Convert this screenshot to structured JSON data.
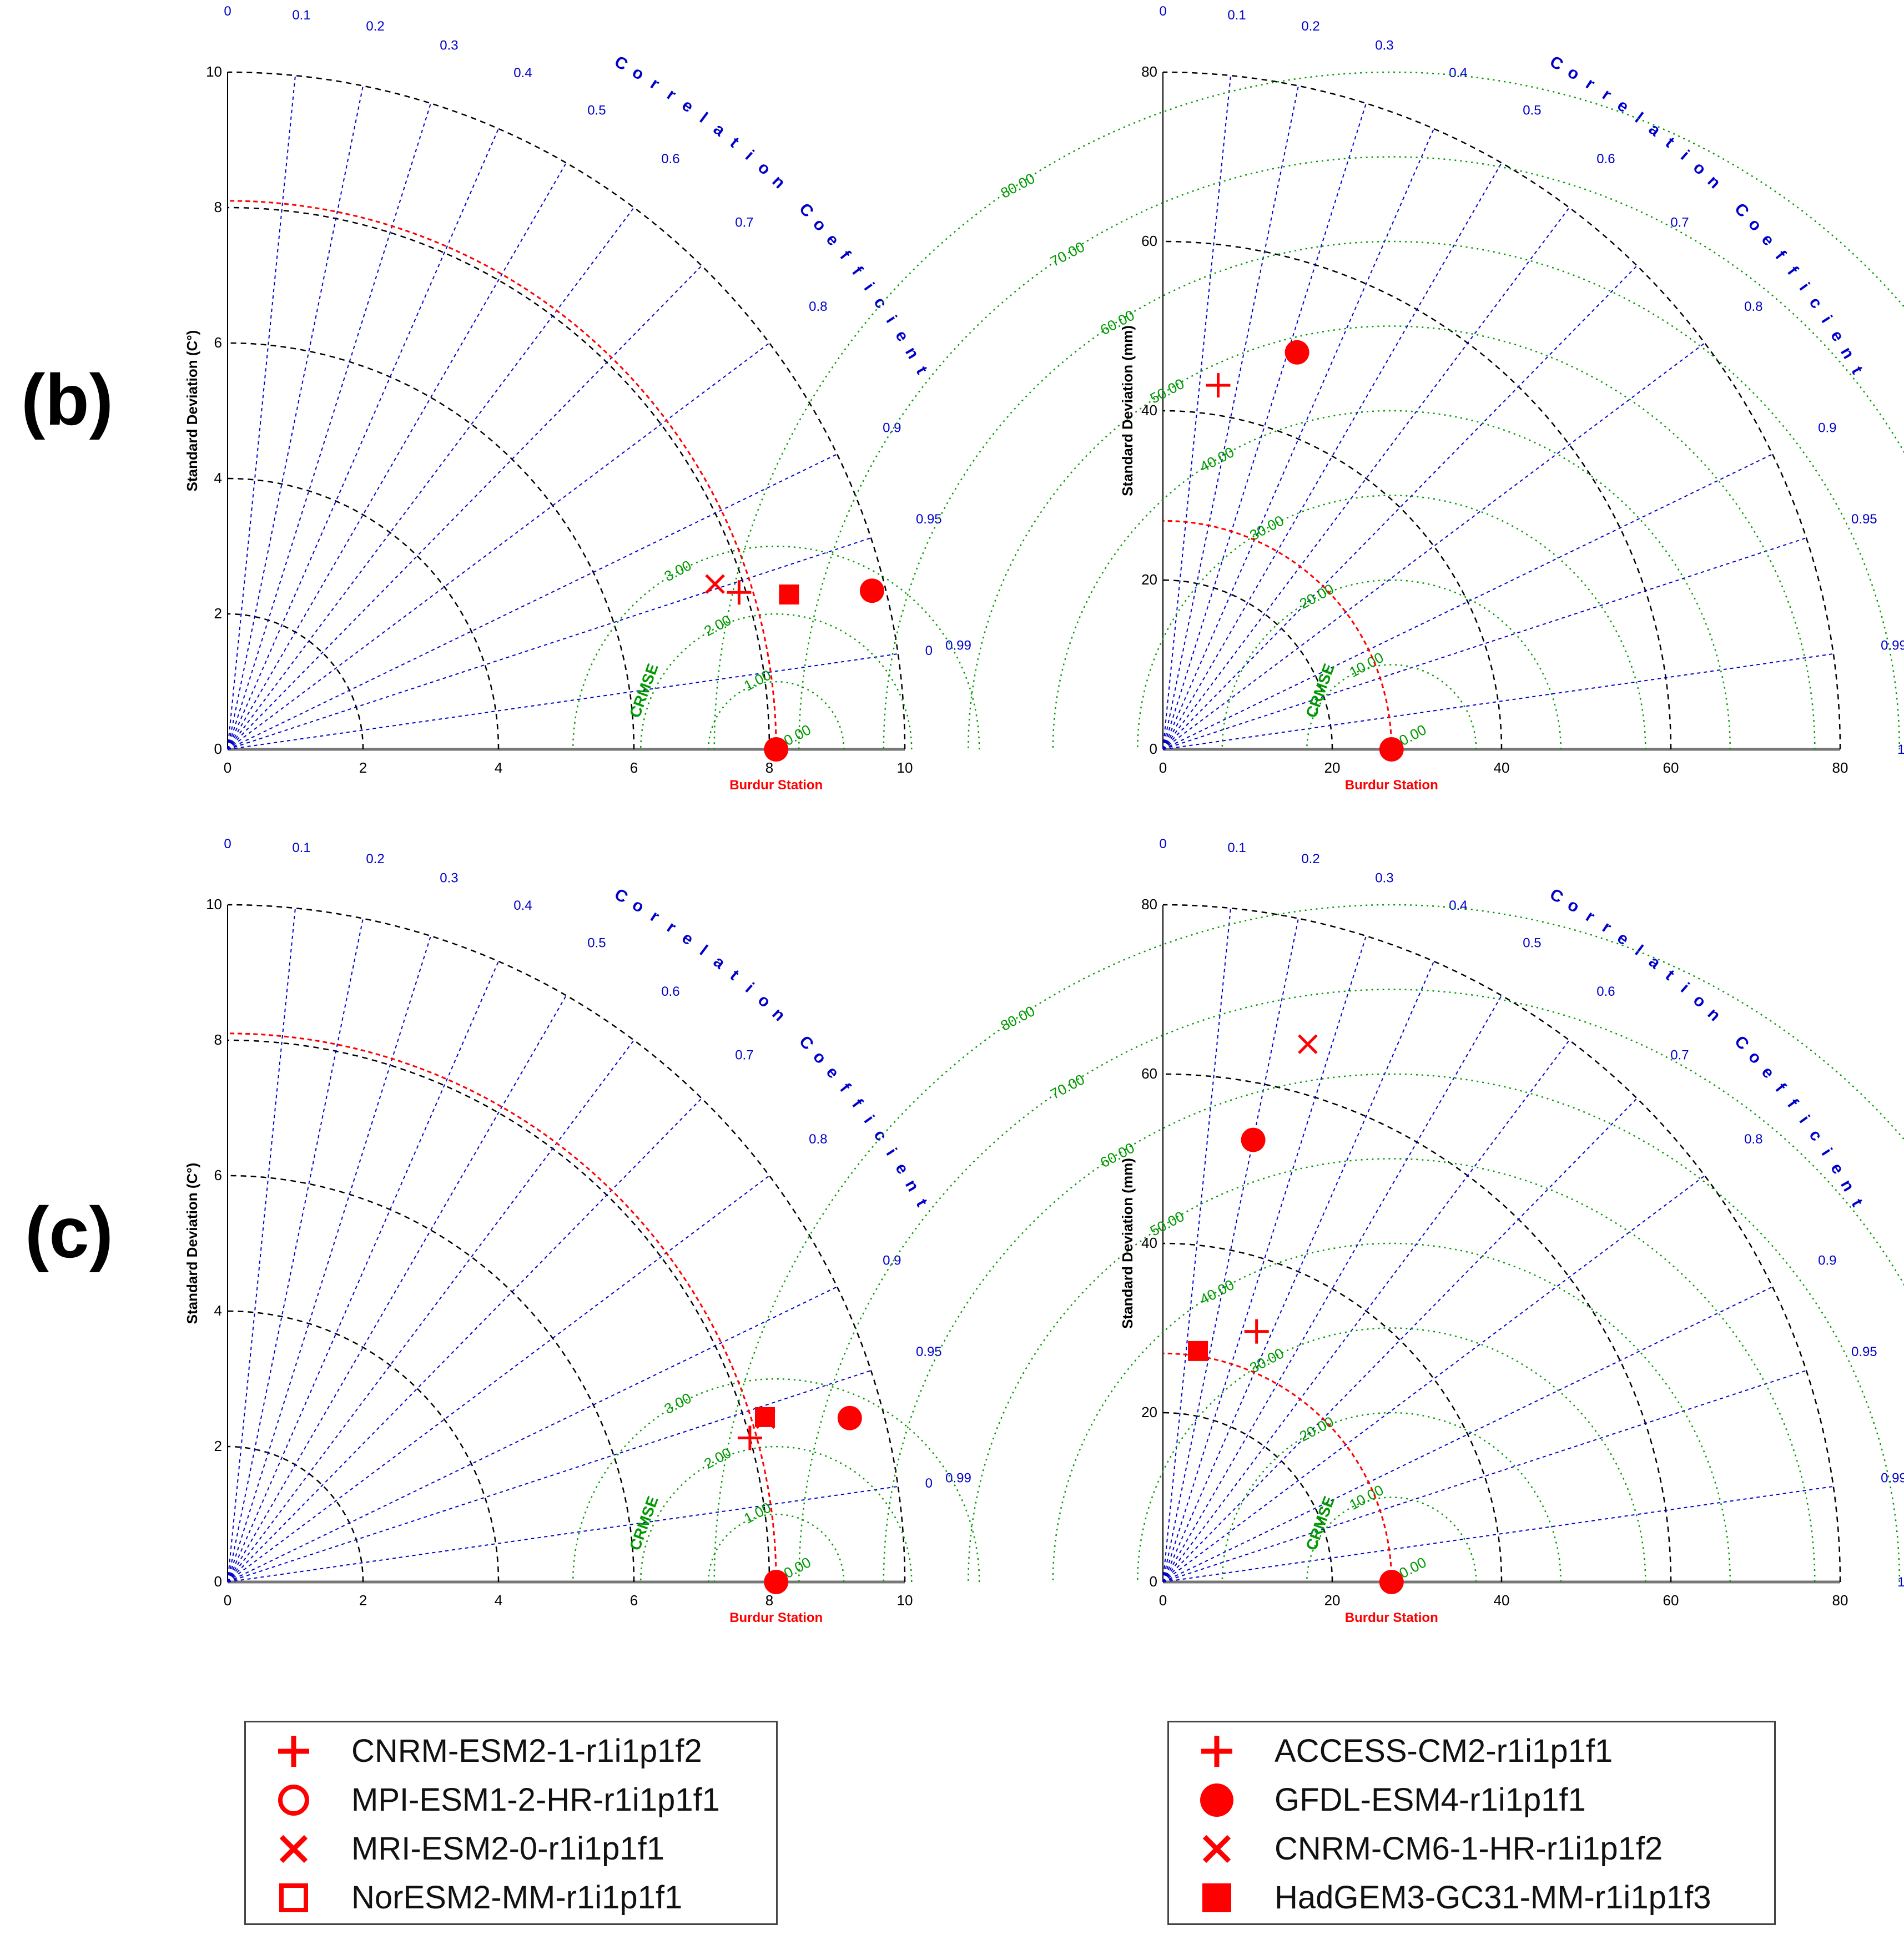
{
  "panel_labels": [
    "(b)",
    "(c)"
  ],
  "legends": [
    {
      "entries": [
        {
          "label": "CNRM-ESM2-1-r1i1p1f2",
          "marker": "plus"
        },
        {
          "label": "MPI-ESM1-2-HR-r1i1p1f1",
          "marker": "circle-open"
        },
        {
          "label": "MRI-ESM2-0-r1i1p1f1",
          "marker": "x"
        },
        {
          "label": "NorESM2-MM-r1i1p1f1",
          "marker": "square-open"
        }
      ]
    },
    {
      "entries": [
        {
          "label": "ACCESS-CM2-r1i1p1f1",
          "marker": "plus"
        },
        {
          "label": "GFDL-ESM4-r1i1p1f1",
          "marker": "circle"
        },
        {
          "label": "CNRM-CM6-1-HR-r1i1p1f2",
          "marker": "x"
        },
        {
          "label": "HadGEM3-GC31-MM-r1i1p1f3",
          "marker": "square"
        }
      ]
    }
  ],
  "colors": {
    "marker": "#ff0000",
    "correlation": "#0000cc",
    "crmse": "#009900",
    "std_arc": "#000000",
    "reference": "#ff0000"
  },
  "chart_data": [
    {
      "type": "taylor",
      "ylabel": "Standard Deviation (C°)",
      "corr_title": "Correlation Coefficient",
      "crmse_title": "CRMSE",
      "reference_label": "Burdur Station",
      "max_std": 10,
      "std_ticks": [
        0,
        2,
        4,
        6,
        8,
        10
      ],
      "reference_std": 8.1,
      "corr_ticks": [
        "0",
        "0.1",
        "0.2",
        "0.3",
        "0.4",
        "0.5",
        "0.6",
        "0.7",
        "0.8",
        "0.9",
        "0.95",
        "0.99"
      ],
      "corr_label_end": "0",
      "crmse_levels": [
        1,
        2,
        3
      ],
      "crmse_labels": [
        "0.00",
        "1.00",
        "2.00",
        "3.00"
      ],
      "points": [
        {
          "model": "CNRM-ESM2-1-r1i1p1f2",
          "marker": "plus",
          "std": 7.9,
          "corr": 0.956
        },
        {
          "model": "MPI-ESM1-2-HR-r1i1p1f1",
          "marker": "circle",
          "std": 9.8,
          "corr": 0.971
        },
        {
          "model": "MRI-ESM2-0-r1i1p1f1",
          "marker": "x",
          "std": 7.6,
          "corr": 0.947
        },
        {
          "model": "NorESM2-MM-r1i1p1f1",
          "marker": "square",
          "std": 8.6,
          "corr": 0.964
        },
        {
          "model": "Burdur Station",
          "marker": "circle",
          "std": 8.1,
          "corr": 1.0
        }
      ]
    },
    {
      "type": "taylor",
      "ylabel": "Standard Deviation (mm)",
      "corr_title": "Correlation Coefficient",
      "crmse_title": "CRMSE",
      "reference_label": "Burdur Station",
      "max_std": 80,
      "std_ticks": [
        0,
        20,
        40,
        60,
        80
      ],
      "reference_std": 27,
      "corr_ticks": [
        "0",
        "0.1",
        "0.2",
        "0.3",
        "0.4",
        "0.5",
        "0.6",
        "0.7",
        "0.8",
        "0.9",
        "0.95",
        "0.99",
        "1"
      ],
      "corr_label_end": "",
      "crmse_levels": [
        10,
        20,
        30,
        40,
        50,
        60,
        70,
        80
      ],
      "crmse_labels": [
        "0.00",
        "10.00",
        "20.00",
        "30.00",
        "40.00",
        "50.00",
        "60.00",
        "70.00",
        "80.00"
      ],
      "points": [
        {
          "model": "ACCESS-CM2-r1i1p1f1",
          "marker": "plus",
          "std": 43.5,
          "corr": 0.15
        },
        {
          "model": "GFDL-ESM4-r1i1p1f1",
          "marker": "circle",
          "std": 49.5,
          "corr": 0.32
        },
        {
          "model": "Burdur Station",
          "marker": "circle",
          "std": 27,
          "corr": 1.0
        }
      ]
    },
    {
      "type": "taylor",
      "ylabel": "Standard Deviation (C°)",
      "corr_title": "Correlation Coefficient",
      "crmse_title": "CRMSE",
      "reference_label": "Burdur Station",
      "max_std": 10,
      "std_ticks": [
        0,
        2,
        4,
        6,
        8,
        10
      ],
      "reference_std": 8.1,
      "corr_ticks": [
        "0",
        "0.1",
        "0.2",
        "0.3",
        "0.4",
        "0.5",
        "0.6",
        "0.7",
        "0.8",
        "0.9",
        "0.95",
        "0.99"
      ],
      "corr_label_end": "0",
      "crmse_levels": [
        1,
        2,
        3
      ],
      "crmse_labels": [
        "0.00",
        "1.00",
        "2.00",
        "3.00"
      ],
      "points": [
        {
          "model": "CNRM-ESM2-1-r1i1p1f2",
          "marker": "plus",
          "std": 8.0,
          "corr": 0.964
        },
        {
          "model": "MPI-ESM1-2-HR-r1i1p1f1",
          "marker": "circle",
          "std": 9.5,
          "corr": 0.967
        },
        {
          "model": "MRI-ESM2-0-r1i1p1f1",
          "marker": "x",
          "std": 8.3,
          "corr": 0.957
        },
        {
          "model": "NorESM2-MM-r1i1p1f1",
          "marker": "square",
          "std": 8.3,
          "corr": 0.956
        },
        {
          "model": "Burdur Station",
          "marker": "circle",
          "std": 8.1,
          "corr": 1.0
        }
      ]
    },
    {
      "type": "taylor",
      "ylabel": "Standard Deviation (mm)",
      "corr_title": "Correlation Coefficient",
      "crmse_title": "CRMSE",
      "reference_label": "Burdur Station",
      "max_std": 80,
      "std_ticks": [
        0,
        20,
        40,
        60,
        80
      ],
      "reference_std": 27,
      "corr_ticks": [
        "0",
        "0.1",
        "0.2",
        "0.3",
        "0.4",
        "0.5",
        "0.6",
        "0.7",
        "0.8",
        "0.9",
        "0.95",
        "0.99",
        "1"
      ],
      "corr_label_end": "",
      "crmse_levels": [
        10,
        20,
        30,
        40,
        50,
        60,
        70,
        80
      ],
      "crmse_labels": [
        "0.00",
        "10.00",
        "20.00",
        "30.00",
        "40.00",
        "50.00",
        "60.00",
        "70.00",
        "80.00"
      ],
      "points": [
        {
          "model": "ACCESS-CM2-r1i1p1f1",
          "marker": "plus",
          "std": 31.6,
          "corr": 0.35
        },
        {
          "model": "GFDL-ESM4-r1i1p1f1",
          "marker": "circle",
          "std": 53.3,
          "corr": 0.2
        },
        {
          "model": "CNRM-CM6-1-HR-r1i1p1f2",
          "marker": "x",
          "std": 65.8,
          "corr": 0.26
        },
        {
          "model": "HadGEM3-GC31-MM-r1i1p1f3",
          "marker": "square",
          "std": 27.6,
          "corr": 0.15
        },
        {
          "model": "Burdur Station",
          "marker": "circle",
          "std": 27,
          "corr": 1.0
        }
      ]
    }
  ]
}
